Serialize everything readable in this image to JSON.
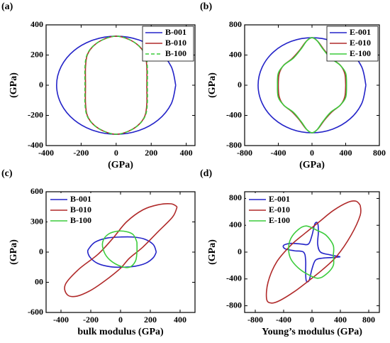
{
  "chart_data": [
    {
      "type": "line",
      "panel": "(a)",
      "xlabel": "(GPa)",
      "ylabel": "(GPa)",
      "xlim": [
        -400,
        450
      ],
      "ylim": [
        -400,
        400
      ],
      "xticks": [
        -400,
        -200,
        0,
        200,
        400
      ],
      "yticks": [
        -400,
        -200,
        0,
        200,
        400
      ],
      "legend": "upper right",
      "series": [
        {
          "name": "B-001",
          "color": "#2323c8",
          "linestyle": "solid",
          "x": [
            340,
            314,
            240,
            130,
            0,
            -130,
            -240,
            -314,
            -340,
            -314,
            -240,
            -130,
            0,
            130,
            240,
            314,
            340
          ],
          "values": [
            0,
            124,
            230,
            300,
            325,
            300,
            230,
            124,
            0,
            -124,
            -230,
            -300,
            -325,
            -300,
            -230,
            -124,
            0
          ]
        },
        {
          "name": "B-010",
          "color": "#b02a2a",
          "linestyle": "solid",
          "x": [
            175,
            175,
            165,
            130,
            70,
            0,
            -70,
            -130,
            -165,
            -175,
            -175,
            -175,
            -165,
            -130,
            -70,
            0,
            70,
            130,
            165,
            175,
            175
          ],
          "values": [
            0,
            120,
            200,
            260,
            305,
            325,
            305,
            260,
            200,
            120,
            0,
            -120,
            -200,
            -260,
            -305,
            -325,
            -305,
            -260,
            -200,
            -120,
            0
          ]
        },
        {
          "name": "B-100",
          "color": "#3ccc3c",
          "linestyle": "dashed",
          "x": [
            178,
            178,
            167,
            131,
            70,
            0,
            -70,
            -131,
            -167,
            -178,
            -178,
            -178,
            -167,
            -131,
            -70,
            0,
            70,
            131,
            167,
            178,
            178
          ],
          "values": [
            0,
            120,
            200,
            260,
            305,
            325,
            305,
            260,
            200,
            120,
            0,
            -120,
            -200,
            -260,
            -305,
            -325,
            -305,
            -260,
            -200,
            -120,
            0
          ]
        }
      ]
    },
    {
      "type": "line",
      "panel": "(b)",
      "xlabel": "(GPa)",
      "ylabel": "(GPa)",
      "xlim": [
        -800,
        800
      ],
      "ylim": [
        -800,
        800
      ],
      "xticks": [
        -800,
        -400,
        0,
        400,
        800
      ],
      "yticks": [
        -800,
        -400,
        0,
        400,
        800
      ],
      "legend": "upper right",
      "series": [
        {
          "name": "E-001",
          "color": "#2323c8",
          "linestyle": "solid",
          "x": [
            640,
            591,
            453,
            245,
            0,
            -245,
            -453,
            -591,
            -640,
            -591,
            -453,
            -245,
            0,
            245,
            453,
            591,
            640
          ],
          "values": [
            0,
            241,
            445,
            582,
            630,
            582,
            445,
            241,
            0,
            -241,
            -445,
            -582,
            -630,
            -582,
            -445,
            -241,
            0
          ]
        },
        {
          "name": "E-010",
          "color": "#b02a2a",
          "linestyle": "solid",
          "x": [
            400,
            390,
            340,
            240,
            150,
            70,
            0,
            -70,
            -150,
            -240,
            -340,
            -390,
            -400,
            -390,
            -340,
            -240,
            -150,
            -70,
            0,
            70,
            150,
            240,
            340,
            390,
            400
          ],
          "values": [
            0,
            150,
            260,
            350,
            460,
            580,
            630,
            580,
            460,
            350,
            260,
            150,
            0,
            -150,
            -260,
            -350,
            -460,
            -580,
            -630,
            -580,
            -460,
            -350,
            -260,
            -150,
            0
          ]
        },
        {
          "name": "E-100",
          "color": "#3ccc3c",
          "linestyle": "solid",
          "x": [
            410,
            400,
            330,
            220,
            130,
            60,
            0,
            -60,
            -130,
            -220,
            -330,
            -400,
            -410,
            -400,
            -330,
            -220,
            -130,
            -60,
            0,
            60,
            130,
            220,
            330,
            400,
            410
          ],
          "values": [
            0,
            160,
            270,
            360,
            480,
            590,
            630,
            590,
            480,
            360,
            270,
            160,
            0,
            -160,
            -270,
            -360,
            -480,
            -590,
            -630,
            -590,
            -480,
            -360,
            -270,
            -160,
            0
          ]
        }
      ]
    },
    {
      "type": "line",
      "panel": "(c)",
      "xlabel": "bulk modulus (GPa)",
      "ylabel": "(GPa)",
      "xlim": [
        -500,
        500
      ],
      "ylim": [
        -600,
        600
      ],
      "xticks": [
        -400,
        -200,
        0,
        200,
        400
      ],
      "yticks": [
        -600,
        {
          "value": -300,
          "label": "00"
        },
        0,
        300,
        600
      ],
      "legend": "upper left",
      "series": [
        {
          "name": "B-001",
          "color": "#2323c8",
          "linestyle": "solid",
          "x": [
            240,
            220,
            160,
            80,
            0,
            -90,
            -170,
            -210,
            -220,
            -200,
            -150,
            -70,
            20,
            100,
            170,
            220,
            240
          ],
          "values": [
            0,
            75,
            130,
            150,
            150,
            140,
            100,
            40,
            0,
            -60,
            -115,
            -145,
            -150,
            -140,
            -110,
            -55,
            0
          ]
        },
        {
          "name": "B-010",
          "color": "#b02a2a",
          "linestyle": "solid",
          "x": [
            380,
            340,
            250,
            150,
            40,
            -50,
            -150,
            -280,
            -370,
            -360,
            -300,
            -200,
            -100,
            0,
            60,
            150,
            250,
            350,
            380
          ],
          "values": [
            450,
            480,
            470,
            420,
            300,
            140,
            -20,
            -170,
            -320,
            -420,
            -440,
            -380,
            -280,
            -160,
            -60,
            50,
            200,
            350,
            450
          ]
        },
        {
          "name": "B-100",
          "color": "#3ccc3c",
          "linestyle": "solid",
          "x": [
            110,
            80,
            0,
            -80,
            -120,
            -110,
            -70,
            0,
            60,
            100,
            110,
            110
          ],
          "values": [
            100,
            180,
            210,
            180,
            100,
            0,
            -80,
            -140,
            -150,
            -90,
            0,
            100
          ]
        }
      ]
    },
    {
      "type": "line",
      "panel": "(d)",
      "xlabel": "Young’s modulus (GPa)",
      "ylabel": "(GPa)",
      "xlim": [
        -950,
        950
      ],
      "ylim": [
        -900,
        900
      ],
      "xticks": [
        -800,
        -400,
        0,
        400,
        800
      ],
      "yticks": [
        -800,
        -400,
        0,
        400,
        800
      ],
      "legend": "upper left",
      "series": [
        {
          "name": "E-001",
          "color": "#2323c8",
          "linestyle": "solid",
          "x": [
            400,
            250,
            120,
            80,
            90,
            80,
            40,
            0,
            -50,
            -150,
            -300,
            -400,
            -380,
            -250,
            -120,
            -90,
            -90,
            -80,
            -40,
            0,
            50,
            150,
            300,
            400
          ],
          "values": [
            -70,
            -40,
            0,
            120,
            300,
            430,
            420,
            250,
            120,
            120,
            130,
            100,
            50,
            20,
            0,
            -120,
            -300,
            -430,
            -420,
            -250,
            -120,
            -90,
            -80,
            -70
          ]
        },
        {
          "name": "E-010",
          "color": "#b02a2a",
          "linestyle": "solid",
          "x": [
            680,
            620,
            500,
            300,
            100,
            -100,
            -300,
            -500,
            -620,
            -640,
            -570,
            -450,
            -250,
            -50,
            150,
            350,
            550,
            680,
            680
          ],
          "values": [
            700,
            760,
            740,
            620,
            450,
            280,
            100,
            -150,
            -450,
            -700,
            -760,
            -720,
            -590,
            -430,
            -260,
            -60,
            250,
            550,
            700
          ]
        },
        {
          "name": "E-100",
          "color": "#3ccc3c",
          "linestyle": "solid",
          "x": [
            300,
            300,
            200,
            80,
            -80,
            -200,
            -300,
            -330,
            -300,
            -200,
            -80,
            80,
            200,
            300,
            300
          ],
          "values": [
            -50,
            100,
            250,
            320,
            390,
            330,
            200,
            50,
            -100,
            -230,
            -320,
            -390,
            -330,
            -200,
            -50
          ]
        }
      ]
    }
  ]
}
